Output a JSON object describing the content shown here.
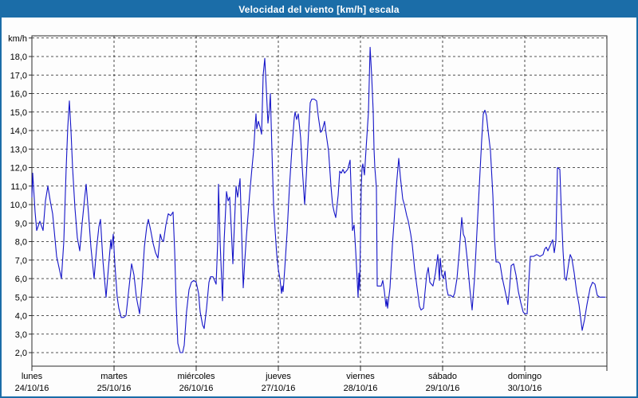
{
  "title": "Velocidad del viento [km/h] escala",
  "colors": {
    "titlebar": "#1b6da8",
    "frame_border": "#1b6da8",
    "line": "#1515c8",
    "grid": "#1c1c1c",
    "background": "#fdfdfd",
    "text": "#000000"
  },
  "chart_data": {
    "type": "line",
    "title": "Velocidad del viento [km/h] escala",
    "ylabel": "km/h",
    "xlabel": "",
    "grid": "dashed",
    "legend_position": "none",
    "ylim": [
      1,
      19
    ],
    "y_ticks": [
      2,
      3,
      4,
      5,
      6,
      7,
      8,
      9,
      10,
      11,
      12,
      13,
      14,
      15,
      16,
      17,
      18
    ],
    "y_tick_labels": [
      "2,0",
      "3,0",
      "4,0",
      "5,0",
      "6,0",
      "7,0",
      "8,0",
      "9,0",
      "10,0",
      "11,0",
      "12,0",
      "13,0",
      "14,0",
      "15,0",
      "16,0",
      "17,0",
      "18,0"
    ],
    "x_axis_days": [
      {
        "name": "lunes",
        "date": "24/10/16"
      },
      {
        "name": "martes",
        "date": "25/10/16"
      },
      {
        "name": "miércoles",
        "date": "26/10/16"
      },
      {
        "name": "jueves",
        "date": "27/10/16"
      },
      {
        "name": "viernes",
        "date": "28/10/16"
      },
      {
        "name": "sábado",
        "date": "29/10/16"
      },
      {
        "name": "domingo",
        "date": "30/10/16"
      }
    ],
    "series": [
      {
        "name": "Velocidad del viento",
        "unit": "km/h",
        "x_unit": "days since 24/10/16 00:00",
        "points": [
          [
            0,
            10.4
          ],
          [
            0.01,
            11.7
          ],
          [
            0.039,
            9.6
          ],
          [
            0.058,
            8.6
          ],
          [
            0.097,
            9.1
          ],
          [
            0.136,
            8.6
          ],
          [
            0.165,
            10.2
          ],
          [
            0.194,
            11
          ],
          [
            0.223,
            10.2
          ],
          [
            0.252,
            9.5
          ],
          [
            0.301,
            7.2
          ],
          [
            0.33,
            6.6
          ],
          [
            0.359,
            6
          ],
          [
            0.388,
            8
          ],
          [
            0.417,
            12
          ],
          [
            0.437,
            14.2
          ],
          [
            0.456,
            15.6
          ],
          [
            0.476,
            14
          ],
          [
            0.495,
            12
          ],
          [
            0.524,
            9.8
          ],
          [
            0.553,
            8.2
          ],
          [
            0.583,
            7.5
          ],
          [
            0.612,
            9
          ],
          [
            0.641,
            10.3
          ],
          [
            0.66,
            11.1
          ],
          [
            0.689,
            9.5
          ],
          [
            0.718,
            7.7
          ],
          [
            0.757,
            6
          ],
          [
            0.786,
            7.6
          ],
          [
            0.816,
            8.8
          ],
          [
            0.835,
            9.2
          ],
          [
            0.864,
            7
          ],
          [
            0.903,
            5
          ],
          [
            0.932,
            6.6
          ],
          [
            0.961,
            8.1
          ],
          [
            0.971,
            7.6
          ],
          [
            0.99,
            8.4
          ],
          [
            1.01,
            6.8
          ],
          [
            1.039,
            5
          ],
          [
            1.058,
            4.4
          ],
          [
            1.087,
            3.9
          ],
          [
            1.117,
            3.9
          ],
          [
            1.146,
            4
          ],
          [
            1.175,
            5.2
          ],
          [
            1.214,
            6.8
          ],
          [
            1.243,
            6.2
          ],
          [
            1.272,
            5
          ],
          [
            1.311,
            4.1
          ],
          [
            1.34,
            5.6
          ],
          [
            1.369,
            7.7
          ],
          [
            1.398,
            8.8
          ],
          [
            1.417,
            9.2
          ],
          [
            1.447,
            8.6
          ],
          [
            1.476,
            7.9
          ],
          [
            1.505,
            7.4
          ],
          [
            1.534,
            7.1
          ],
          [
            1.563,
            8.4
          ],
          [
            1.583,
            8.1
          ],
          [
            1.602,
            8
          ],
          [
            1.631,
            8.9
          ],
          [
            1.66,
            9.5
          ],
          [
            1.689,
            9.4
          ],
          [
            1.718,
            9.6
          ],
          [
            1.738,
            7.5
          ],
          [
            1.757,
            4.5
          ],
          [
            1.777,
            2.5
          ],
          [
            1.806,
            2
          ],
          [
            1.835,
            2
          ],
          [
            1.854,
            2.4
          ],
          [
            1.883,
            4.2
          ],
          [
            1.913,
            5.4
          ],
          [
            1.942,
            5.8
          ],
          [
            1.971,
            5.9
          ],
          [
            2,
            5.8
          ],
          [
            2.029,
            5.2
          ],
          [
            2.049,
            4.2
          ],
          [
            2.078,
            3.5
          ],
          [
            2.097,
            3.3
          ],
          [
            2.126,
            4.4
          ],
          [
            2.155,
            5.8
          ],
          [
            2.175,
            6.1
          ],
          [
            2.204,
            6.1
          ],
          [
            2.223,
            5.9
          ],
          [
            2.243,
            5.7
          ],
          [
            2.262,
            8
          ],
          [
            2.272,
            11.1
          ],
          [
            2.291,
            8
          ],
          [
            2.32,
            4.8
          ],
          [
            2.34,
            8
          ],
          [
            2.369,
            10.7
          ],
          [
            2.388,
            10.2
          ],
          [
            2.408,
            10.4
          ],
          [
            2.427,
            8.7
          ],
          [
            2.447,
            6.8
          ],
          [
            2.466,
            9
          ],
          [
            2.485,
            11
          ],
          [
            2.505,
            10.4
          ],
          [
            2.534,
            11.4
          ],
          [
            2.553,
            8.5
          ],
          [
            2.573,
            5.5
          ],
          [
            2.592,
            7
          ],
          [
            2.612,
            8.3
          ],
          [
            2.631,
            9.4
          ],
          [
            2.65,
            10.5
          ],
          [
            2.68,
            12
          ],
          [
            2.699,
            12.9
          ],
          [
            2.718,
            14.3
          ],
          [
            2.728,
            14.9
          ],
          [
            2.738,
            14.1
          ],
          [
            2.757,
            14.5
          ],
          [
            2.777,
            14.2
          ],
          [
            2.796,
            13.8
          ],
          [
            2.816,
            17
          ],
          [
            2.835,
            17.9
          ],
          [
            2.854,
            16.2
          ],
          [
            2.874,
            14.4
          ],
          [
            2.893,
            15.2
          ],
          [
            2.903,
            16
          ],
          [
            2.922,
            12.9
          ],
          [
            2.942,
            10
          ],
          [
            2.961,
            8.6
          ],
          [
            2.981,
            7.3
          ],
          [
            3,
            6.5
          ],
          [
            3.019,
            6
          ],
          [
            3.039,
            5.2
          ],
          [
            3.049,
            5.6
          ],
          [
            3.058,
            5.3
          ],
          [
            3.078,
            6.5
          ],
          [
            3.107,
            8.5
          ],
          [
            3.136,
            11
          ],
          [
            3.165,
            13
          ],
          [
            3.194,
            14.7
          ],
          [
            3.204,
            15
          ],
          [
            3.223,
            14.6
          ],
          [
            3.243,
            14.9
          ],
          [
            3.272,
            13.6
          ],
          [
            3.291,
            12
          ],
          [
            3.32,
            10
          ],
          [
            3.34,
            11.5
          ],
          [
            3.369,
            14
          ],
          [
            3.388,
            15.5
          ],
          [
            3.408,
            15.7
          ],
          [
            3.437,
            15.7
          ],
          [
            3.466,
            15.6
          ],
          [
            3.485,
            14.8
          ],
          [
            3.515,
            13.9
          ],
          [
            3.534,
            14
          ],
          [
            3.563,
            14.5
          ],
          [
            3.583,
            13.8
          ],
          [
            3.612,
            12.9
          ],
          [
            3.641,
            11
          ],
          [
            3.66,
            10
          ],
          [
            3.68,
            9.6
          ],
          [
            3.699,
            9.3
          ],
          [
            3.728,
            10.5
          ],
          [
            3.748,
            11.8
          ],
          [
            3.767,
            11.7
          ],
          [
            3.786,
            11.9
          ],
          [
            3.806,
            11.7
          ],
          [
            3.825,
            11.8
          ],
          [
            3.845,
            11.9
          ],
          [
            3.874,
            12.4
          ],
          [
            3.903,
            8.6
          ],
          [
            3.922,
            8.9
          ],
          [
            3.942,
            7.5
          ],
          [
            3.971,
            5
          ],
          [
            3.981,
            6.3
          ],
          [
            3.99,
            5.4
          ],
          [
            4.01,
            11
          ],
          [
            4.019,
            12
          ],
          [
            4.029,
            12.2
          ],
          [
            4.049,
            11.6
          ],
          [
            4.068,
            13
          ],
          [
            4.097,
            15
          ],
          [
            4.117,
            18.5
          ],
          [
            4.136,
            17
          ],
          [
            4.155,
            15
          ],
          [
            4.165,
            13
          ],
          [
            4.175,
            12
          ],
          [
            4.194,
            10.9
          ],
          [
            4.204,
            5.6
          ],
          [
            4.233,
            5.6
          ],
          [
            4.252,
            5.6
          ],
          [
            4.272,
            5.9
          ],
          [
            4.291,
            5.3
          ],
          [
            4.311,
            4.5
          ],
          [
            4.32,
            4.9
          ],
          [
            4.33,
            4.4
          ],
          [
            4.359,
            5.5
          ],
          [
            4.388,
            7.8
          ],
          [
            4.408,
            9
          ],
          [
            4.437,
            11
          ],
          [
            4.466,
            12.5
          ],
          [
            4.485,
            11.5
          ],
          [
            4.515,
            10.3
          ],
          [
            4.534,
            10
          ],
          [
            4.563,
            9.4
          ],
          [
            4.583,
            9.1
          ],
          [
            4.612,
            8.4
          ],
          [
            4.631,
            7.8
          ],
          [
            4.66,
            6.5
          ],
          [
            4.689,
            5.5
          ],
          [
            4.718,
            4.5
          ],
          [
            4.738,
            4.3
          ],
          [
            4.767,
            4.4
          ],
          [
            4.786,
            5.3
          ],
          [
            4.806,
            6.2
          ],
          [
            4.825,
            6.6
          ],
          [
            4.845,
            5.8
          ],
          [
            4.864,
            5.7
          ],
          [
            4.883,
            5.6
          ],
          [
            4.913,
            6.3
          ],
          [
            4.942,
            7.3
          ],
          [
            4.961,
            5.9
          ],
          [
            4.971,
            7.1
          ],
          [
            4.99,
            6.2
          ],
          [
            5.01,
            6
          ],
          [
            5.029,
            6.4
          ],
          [
            5.049,
            5.5
          ],
          [
            5.068,
            5.1
          ],
          [
            5.097,
            5.1
          ],
          [
            5.126,
            5
          ],
          [
            5.146,
            5.2
          ],
          [
            5.175,
            6
          ],
          [
            5.204,
            7.5
          ],
          [
            5.233,
            9.3
          ],
          [
            5.252,
            8.4
          ],
          [
            5.272,
            8.2
          ],
          [
            5.301,
            7
          ],
          [
            5.33,
            5.5
          ],
          [
            5.359,
            4.3
          ],
          [
            5.388,
            6
          ],
          [
            5.417,
            8.5
          ],
          [
            5.447,
            11
          ],
          [
            5.476,
            13.5
          ],
          [
            5.495,
            14.9
          ],
          [
            5.515,
            15.1
          ],
          [
            5.534,
            14.8
          ],
          [
            5.553,
            14
          ],
          [
            5.583,
            12.9
          ],
          [
            5.612,
            10.5
          ],
          [
            5.631,
            8.2
          ],
          [
            5.65,
            6.9
          ],
          [
            5.68,
            6.9
          ],
          [
            5.699,
            6.8
          ],
          [
            5.728,
            6
          ],
          [
            5.757,
            5.4
          ],
          [
            5.796,
            4.6
          ],
          [
            5.816,
            5.5
          ],
          [
            5.835,
            6.7
          ],
          [
            5.864,
            6.8
          ],
          [
            5.893,
            6.2
          ],
          [
            5.922,
            5.3
          ],
          [
            5.951,
            4.7
          ],
          [
            5.981,
            4.2
          ],
          [
            6,
            4.1
          ],
          [
            6.029,
            4.1
          ],
          [
            6.049,
            5.8
          ],
          [
            6.068,
            7.2
          ],
          [
            6.107,
            7.2
          ],
          [
            6.146,
            7.3
          ],
          [
            6.184,
            7.2
          ],
          [
            6.223,
            7.3
          ],
          [
            6.243,
            7.6
          ],
          [
            6.262,
            7.7
          ],
          [
            6.282,
            7.5
          ],
          [
            6.311,
            7.8
          ],
          [
            6.34,
            8.1
          ],
          [
            6.359,
            7.4
          ],
          [
            6.379,
            8
          ],
          [
            6.398,
            12
          ],
          [
            6.427,
            11.9
          ],
          [
            6.447,
            9.5
          ],
          [
            6.466,
            7.5
          ],
          [
            6.485,
            6.1
          ],
          [
            6.505,
            5.9
          ],
          [
            6.534,
            6.8
          ],
          [
            6.553,
            7.3
          ],
          [
            6.573,
            7.1
          ],
          [
            6.602,
            6.3
          ],
          [
            6.631,
            5.3
          ],
          [
            6.66,
            4.6
          ],
          [
            6.699,
            3.2
          ],
          [
            6.728,
            3.8
          ],
          [
            6.757,
            4.6
          ],
          [
            6.796,
            5.5
          ],
          [
            6.825,
            5.8
          ],
          [
            6.854,
            5.7
          ],
          [
            6.883,
            5.1
          ],
          [
            6.913,
            5
          ],
          [
            6.951,
            5
          ],
          [
            6.981,
            5
          ]
        ]
      }
    ]
  }
}
